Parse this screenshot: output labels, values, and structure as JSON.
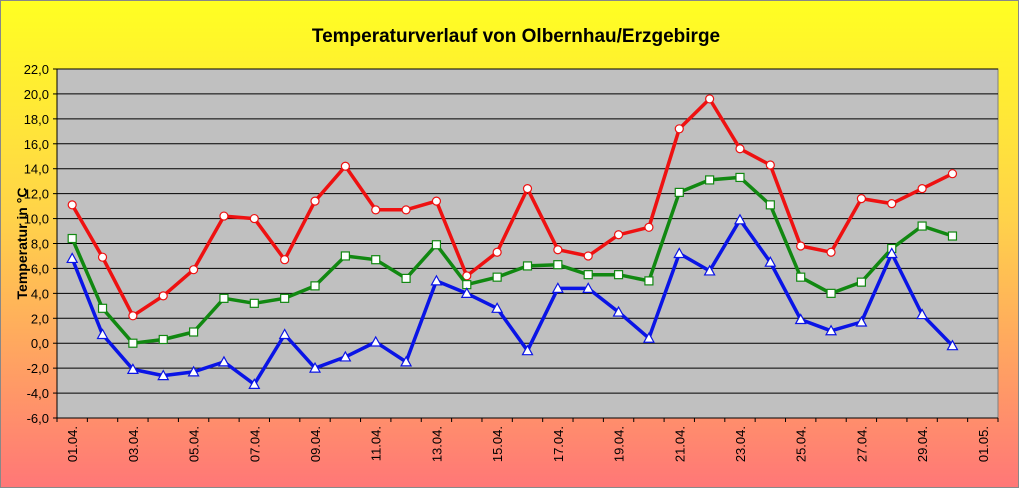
{
  "chart_data": {
    "type": "line",
    "title": "Temperaturverlauf von Olbernhau/Erzgebirge",
    "ylabel": "Temperatur in °C",
    "xlabel": "",
    "ylim": [
      -6,
      22
    ],
    "y_tick_step": 2,
    "grid": true,
    "legend": "none",
    "x": [
      "01.04.",
      "02.04.",
      "03.04.",
      "04.04.",
      "05.04.",
      "06.04.",
      "07.04.",
      "08.04.",
      "09.04.",
      "10.04.",
      "11.04.",
      "12.04.",
      "13.04.",
      "14.04.",
      "15.04.",
      "16.04.",
      "17.04.",
      "18.04.",
      "19.04.",
      "20.04.",
      "21.04.",
      "22.04.",
      "23.04.",
      "24.04.",
      "25.04.",
      "26.04.",
      "27.04.",
      "28.04.",
      "29.04.",
      "30.04."
    ],
    "x_tick_labels": [
      "01.04.",
      "03.04.",
      "05.04.",
      "07.04.",
      "09.04.",
      "11.04.",
      "13.04.",
      "15.04.",
      "17.04.",
      "19.04.",
      "21.04.",
      "23.04.",
      "25.04.",
      "27.04.",
      "29.04.",
      "01.05."
    ],
    "y_tick_labels": [
      "-6,0",
      "-4,0",
      "-2,0",
      "0,0",
      "2,0",
      "4,0",
      "6,0",
      "8,0",
      "10,0",
      "12,0",
      "14,0",
      "16,0",
      "18,0",
      "20,0",
      "22,0"
    ],
    "series": [
      {
        "color": "#ee1111",
        "marker": "circle",
        "values": [
          11.1,
          6.9,
          2.2,
          3.8,
          5.9,
          10.2,
          10.0,
          6.7,
          11.4,
          14.2,
          10.7,
          10.7,
          11.4,
          5.4,
          7.3,
          12.4,
          7.5,
          7.0,
          8.7,
          9.3,
          17.2,
          19.6,
          15.6,
          14.3,
          7.8,
          7.3,
          11.6,
          11.2,
          12.4,
          13.6
        ]
      },
      {
        "color": "#118811",
        "marker": "square",
        "values": [
          8.4,
          2.8,
          0.0,
          0.3,
          0.9,
          3.6,
          3.2,
          3.6,
          4.6,
          7.0,
          6.7,
          5.2,
          7.9,
          4.7,
          5.3,
          6.2,
          6.3,
          5.5,
          5.5,
          5.0,
          12.1,
          13.1,
          13.3,
          11.1,
          5.3,
          4.0,
          4.9,
          7.6,
          9.4,
          8.6
        ]
      },
      {
        "color": "#0a14e6",
        "marker": "triangle",
        "values": [
          6.8,
          0.7,
          -2.1,
          -2.6,
          -2.3,
          -1.5,
          -3.3,
          0.7,
          -2.0,
          -1.1,
          0.1,
          -1.5,
          5.0,
          4.0,
          2.8,
          -0.6,
          4.4,
          4.4,
          2.5,
          0.4,
          7.2,
          5.8,
          9.9,
          6.5,
          1.9,
          1.0,
          1.7,
          7.2,
          2.3,
          -0.2
        ]
      }
    ]
  },
  "colors": {
    "plot_area": "#c0c0c0",
    "gridline": "#000000"
  }
}
